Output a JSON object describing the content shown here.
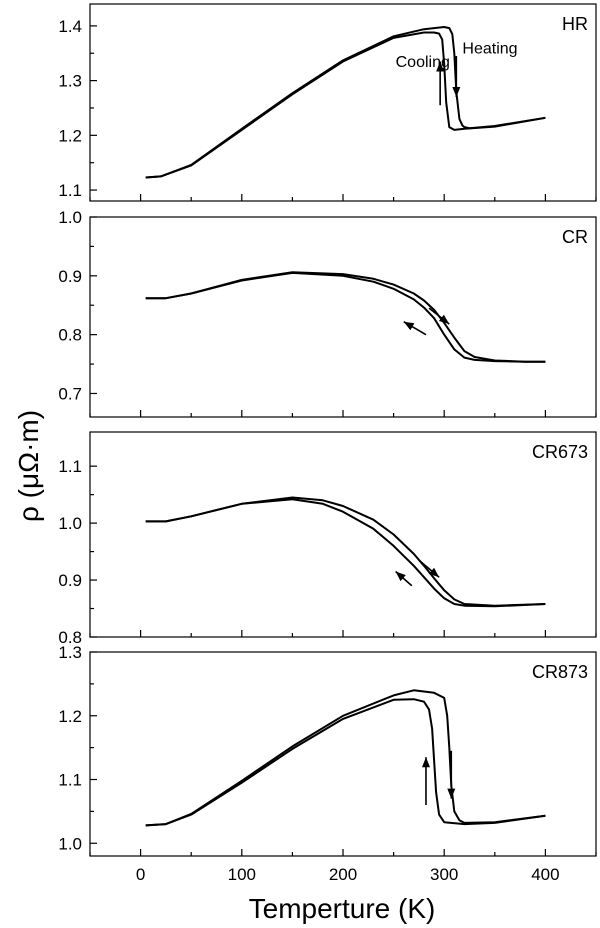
{
  "chart_data": {
    "type": "line",
    "xlabel": "Temperture (K)",
    "ylabel": "ρ (μΩ·m)",
    "xlim": [
      -50,
      450
    ],
    "xticks": [
      0,
      100,
      200,
      300,
      400
    ],
    "panels": [
      {
        "label": "HR",
        "ylim": [
          1.08,
          1.44
        ],
        "yticks": [
          1.1,
          1.2,
          1.3,
          1.4
        ],
        "series": [
          {
            "x": [
              5,
              20,
              50,
              100,
              150,
              200,
              250,
              280,
              290,
              295,
              298,
              300,
              302,
              305,
              310,
              320,
              350,
              400
            ],
            "y": [
              1.123,
              1.125,
              1.145,
              1.21,
              1.275,
              1.335,
              1.378,
              1.388,
              1.388,
              1.386,
              1.375,
              1.33,
              1.26,
              1.215,
              1.21,
              1.212,
              1.216,
              1.232
            ]
          },
          {
            "x": [
              5,
              20,
              50,
              100,
              150,
              200,
              250,
              280,
              300,
              305,
              308,
              310,
              312,
              315,
              318,
              320,
              325,
              350,
              400
            ],
            "y": [
              1.123,
              1.125,
              1.146,
              1.212,
              1.277,
              1.337,
              1.381,
              1.394,
              1.398,
              1.396,
              1.385,
              1.35,
              1.28,
              1.23,
              1.218,
              1.215,
              1.213,
              1.217,
              1.232
            ]
          }
        ],
        "annotations": [
          {
            "text": "Heating",
            "x": 318,
            "y": 1.35,
            "arrow": "down",
            "ax": 312,
            "ay_from": 1.345,
            "ay_to": 1.27
          },
          {
            "text": "Cooling",
            "x": 252,
            "y": 1.325,
            "arrow": "up",
            "ax": 296,
            "ay_from": 1.255,
            "ay_to": 1.335
          }
        ]
      },
      {
        "label": "CR",
        "ylim": [
          0.66,
          1.0
        ],
        "yticks": [
          0.7,
          0.8,
          0.9,
          1.0
        ],
        "series": [
          {
            "x": [
              5,
              25,
              50,
              100,
              150,
              200,
              230,
              250,
              270,
              280,
              290,
              300,
              310,
              320,
              330,
              350,
              380,
              400
            ],
            "y": [
              0.862,
              0.862,
              0.87,
              0.892,
              0.905,
              0.9,
              0.89,
              0.878,
              0.86,
              0.846,
              0.828,
              0.8,
              0.775,
              0.761,
              0.757,
              0.755,
              0.754,
              0.754
            ]
          },
          {
            "x": [
              5,
              25,
              50,
              100,
              150,
              200,
              230,
              250,
              270,
              280,
              290,
              300,
              310,
              320,
              330,
              350,
              380,
              400
            ],
            "y": [
              0.862,
              0.862,
              0.87,
              0.893,
              0.906,
              0.903,
              0.895,
              0.885,
              0.87,
              0.858,
              0.842,
              0.82,
              0.795,
              0.772,
              0.762,
              0.756,
              0.754,
              0.754
            ]
          }
        ],
        "annotations": [
          {
            "text": "",
            "arrow": "down-right",
            "x0": 285,
            "y0": 0.845,
            "x1": 305,
            "y1": 0.818
          },
          {
            "text": "",
            "arrow": "up-left",
            "x0": 282,
            "y0": 0.8,
            "x1": 260,
            "y1": 0.822
          }
        ]
      },
      {
        "label": "CR673",
        "ylim": [
          0.8,
          1.16
        ],
        "yticks": [
          0.8,
          0.9,
          1.0,
          1.1
        ],
        "series": [
          {
            "x": [
              5,
              25,
              50,
              100,
              150,
              180,
              200,
              230,
              250,
              270,
              280,
              290,
              300,
              310,
              320,
              350,
              400
            ],
            "y": [
              1.003,
              1.003,
              1.012,
              1.034,
              1.042,
              1.034,
              1.02,
              0.99,
              0.96,
              0.925,
              0.905,
              0.885,
              0.868,
              0.858,
              0.855,
              0.854,
              0.858
            ]
          },
          {
            "x": [
              5,
              25,
              50,
              100,
              150,
              180,
              200,
              230,
              250,
              270,
              280,
              290,
              300,
              310,
              320,
              350,
              400
            ],
            "y": [
              1.003,
              1.003,
              1.012,
              1.034,
              1.045,
              1.04,
              1.03,
              1.006,
              0.98,
              0.946,
              0.925,
              0.903,
              0.882,
              0.866,
              0.858,
              0.855,
              0.858
            ]
          }
        ],
        "annotations": [
          {
            "text": "",
            "arrow": "down-right",
            "x0": 275,
            "y0": 0.935,
            "x1": 295,
            "y1": 0.905
          },
          {
            "text": "",
            "arrow": "up-left",
            "x0": 268,
            "y0": 0.89,
            "x1": 252,
            "y1": 0.915
          }
        ]
      },
      {
        "label": "CR873",
        "ylim": [
          0.98,
          1.3
        ],
        "yticks": [
          1.0,
          1.1,
          1.2,
          1.3
        ],
        "series": [
          {
            "x": [
              5,
              25,
              50,
              100,
              150,
              200,
              250,
              270,
              280,
              285,
              288,
              290,
              292,
              295,
              300,
              320,
              350,
              400
            ],
            "y": [
              1.028,
              1.03,
              1.045,
              1.095,
              1.148,
              1.195,
              1.225,
              1.226,
              1.222,
              1.21,
              1.18,
              1.13,
              1.08,
              1.045,
              1.033,
              1.03,
              1.032,
              1.043
            ]
          },
          {
            "x": [
              5,
              25,
              50,
              100,
              150,
              200,
              250,
              270,
              290,
              300,
              303,
              305,
              307,
              310,
              315,
              320,
              350,
              400
            ],
            "y": [
              1.028,
              1.03,
              1.046,
              1.098,
              1.152,
              1.2,
              1.232,
              1.24,
              1.236,
              1.228,
              1.2,
              1.15,
              1.09,
              1.05,
              1.036,
              1.032,
              1.033,
              1.043
            ]
          }
        ],
        "annotations": [
          {
            "text": "",
            "arrow": "down",
            "x0": 307,
            "y0": 1.145,
            "x1": 307,
            "y1": 1.07
          },
          {
            "text": "",
            "arrow": "up",
            "x0": 282,
            "y0": 1.06,
            "x1": 282,
            "y1": 1.135
          }
        ]
      }
    ]
  }
}
